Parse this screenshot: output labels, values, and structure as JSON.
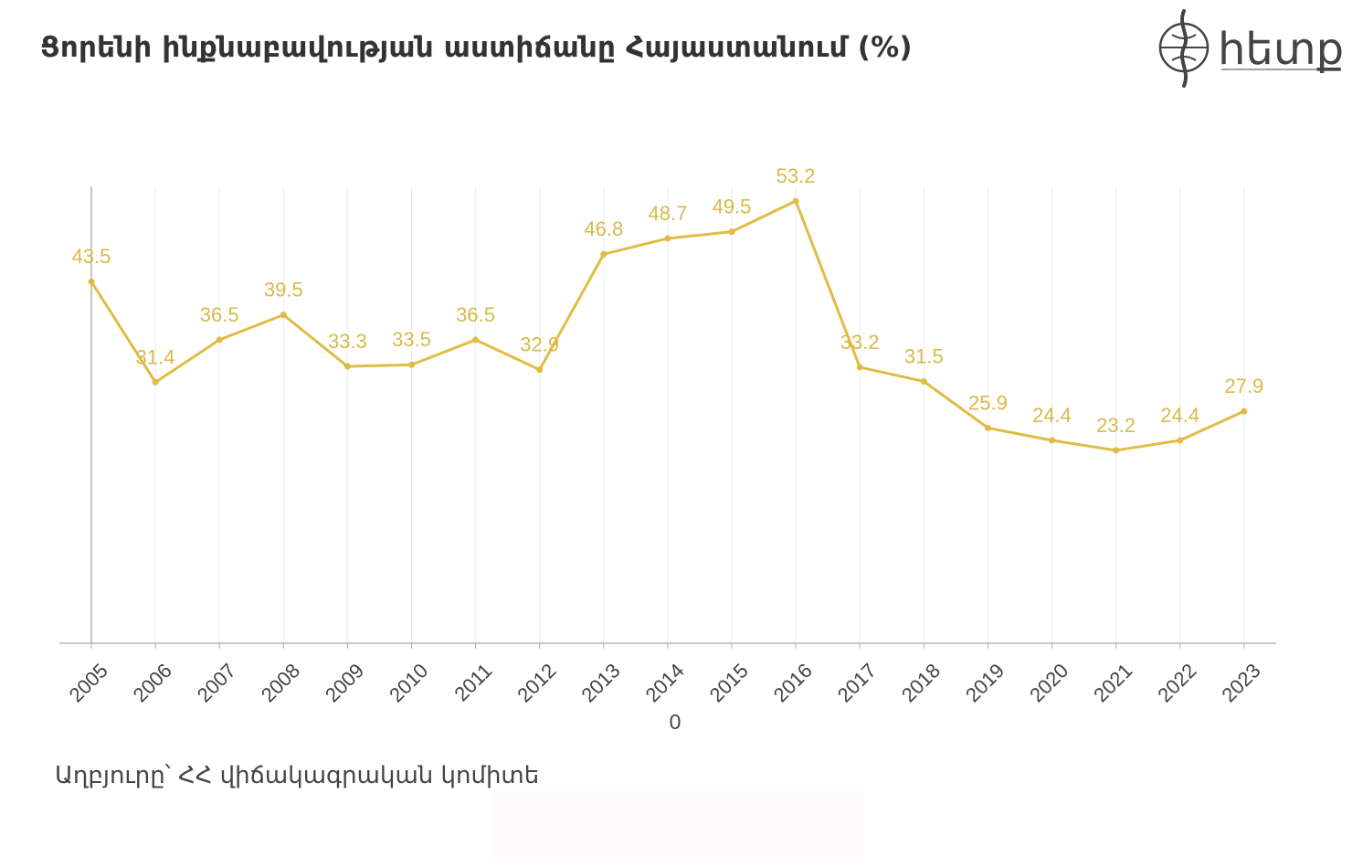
{
  "title": "Ցորենի ինքնաբավության աստիճանը Հայաստանում (%)",
  "logo": {
    "text": "հետք",
    "icon": "compass-icon"
  },
  "source": "Աղբյուրը՝ ՀՀ վիճակագրական կոմիտե",
  "colors": {
    "line": "#e0bc45",
    "label": "#d9b84a",
    "grid": "#ececec",
    "axis": "#888888"
  },
  "chart_data": {
    "type": "line",
    "title": "Ցորենի ինքնաբավության աստիճանը Հայաստանում (%)",
    "xlabel": "0",
    "ylabel": "",
    "categories": [
      "2005",
      "2006",
      "2007",
      "2008",
      "2009",
      "2010",
      "2011",
      "2012",
      "2013",
      "2014",
      "2015",
      "2016",
      "2017",
      "2018",
      "2019",
      "2020",
      "2021",
      "2022",
      "2023"
    ],
    "series": [
      {
        "values": [
          43.5,
          31.4,
          36.5,
          39.5,
          33.3,
          33.5,
          36.5,
          32.9,
          46.8,
          48.7,
          49.5,
          53.2,
          33.2,
          31.5,
          25.9,
          24.4,
          23.2,
          24.4,
          27.9
        ]
      }
    ],
    "ylim": [
      0,
      55
    ],
    "grid": "vertical",
    "data_labels": true
  }
}
